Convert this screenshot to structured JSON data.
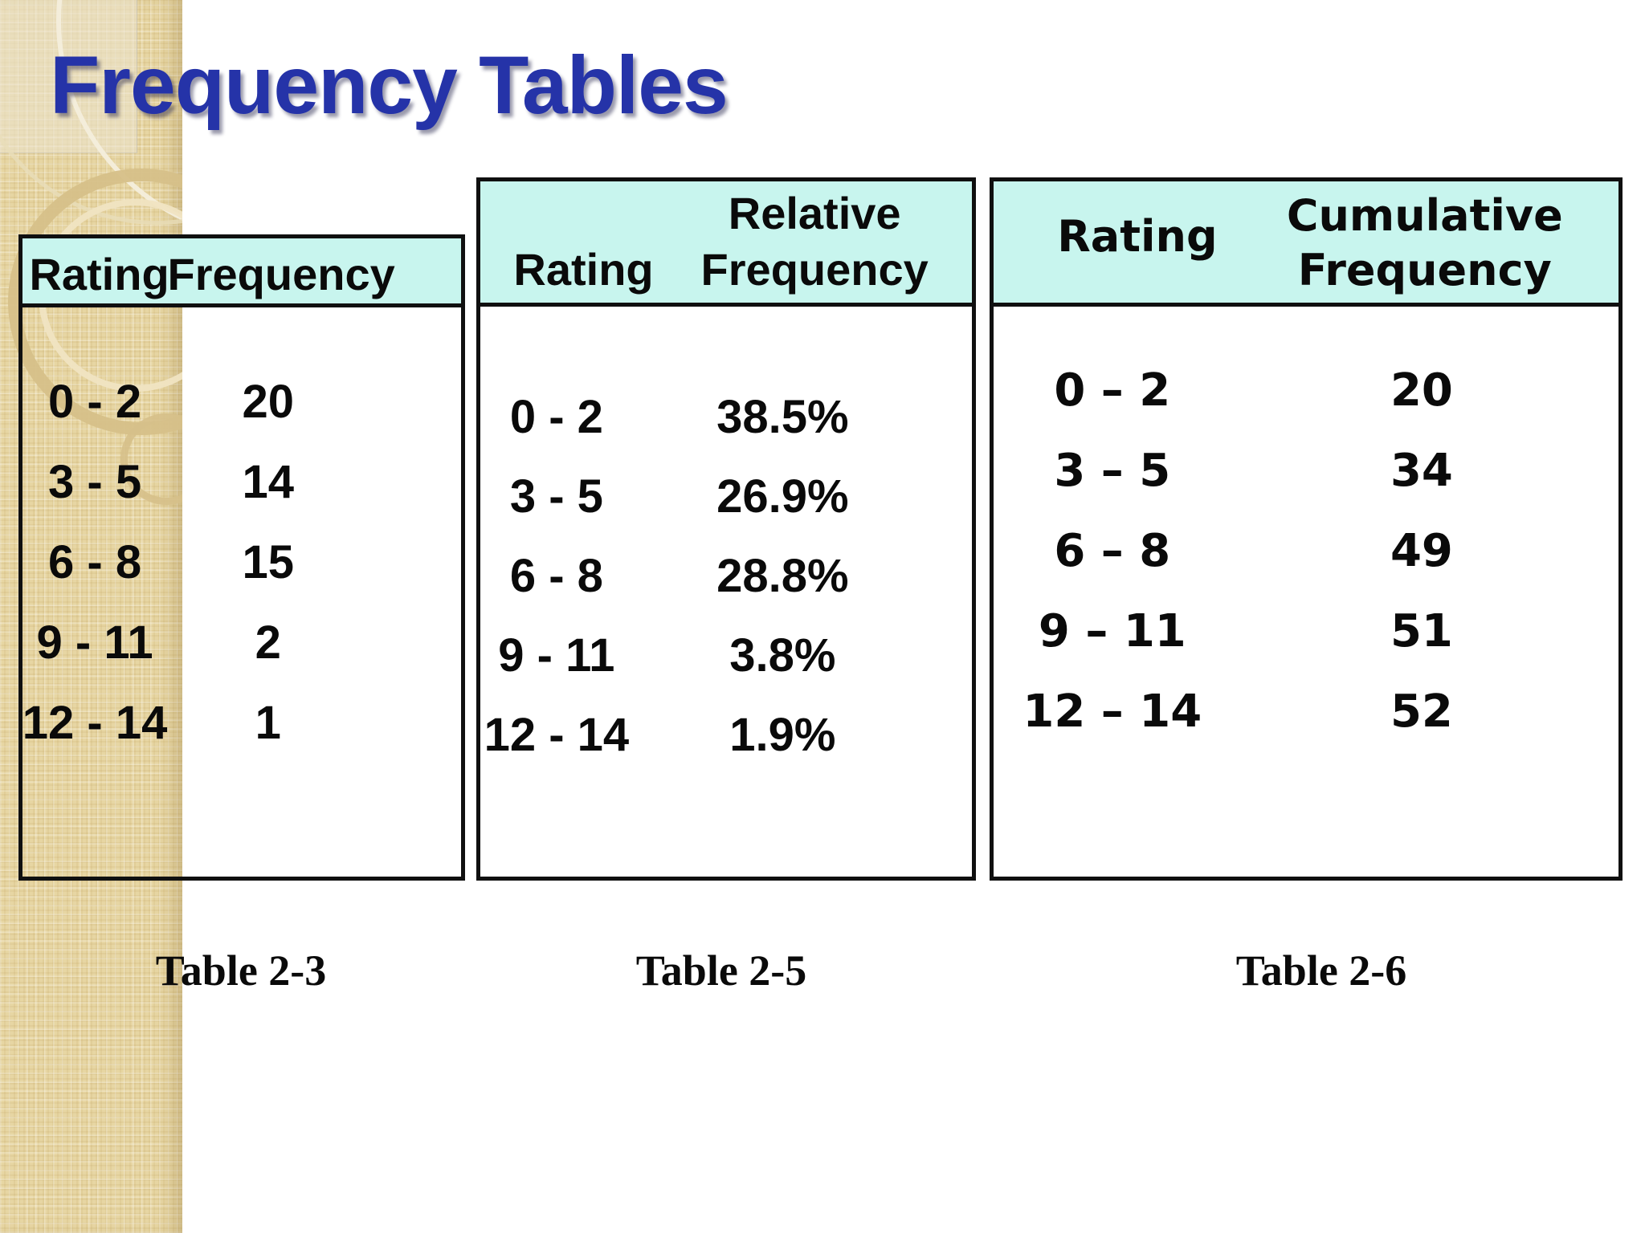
{
  "slide": {
    "title": "Frequency Tables"
  },
  "colors": {
    "title_blue": "#2533a8",
    "table_header_fill": "#c8f5ee",
    "sidebar_tan": "#e7d6a3",
    "border_black": "#101010"
  },
  "tables": [
    {
      "caption": "Table 2-3",
      "columns": [
        "Rating",
        "Frequency"
      ],
      "rows": [
        [
          "0 - 2",
          "20"
        ],
        [
          "3 - 5",
          "14"
        ],
        [
          "6 - 8",
          "15"
        ],
        [
          "9 - 11",
          "2"
        ],
        [
          "12 - 14",
          "1"
        ]
      ]
    },
    {
      "caption": "Table 2-5",
      "columns": [
        "Rating",
        "Relative Frequency"
      ],
      "rows": [
        [
          "0 - 2",
          "38.5%"
        ],
        [
          "3 - 5",
          "26.9%"
        ],
        [
          "6 - 8",
          "28.8%"
        ],
        [
          "9 - 11",
          "3.8%"
        ],
        [
          "12 - 14",
          "1.9%"
        ]
      ]
    },
    {
      "caption": "Table 2-6",
      "columns": [
        "Rating",
        "Cumulative Frequency"
      ],
      "rows": [
        [
          "0 – 2",
          "20"
        ],
        [
          "3 – 5",
          "34"
        ],
        [
          "6 – 8",
          "49"
        ],
        [
          "9 – 11",
          "51"
        ],
        [
          "12 – 14",
          "52"
        ]
      ]
    }
  ]
}
